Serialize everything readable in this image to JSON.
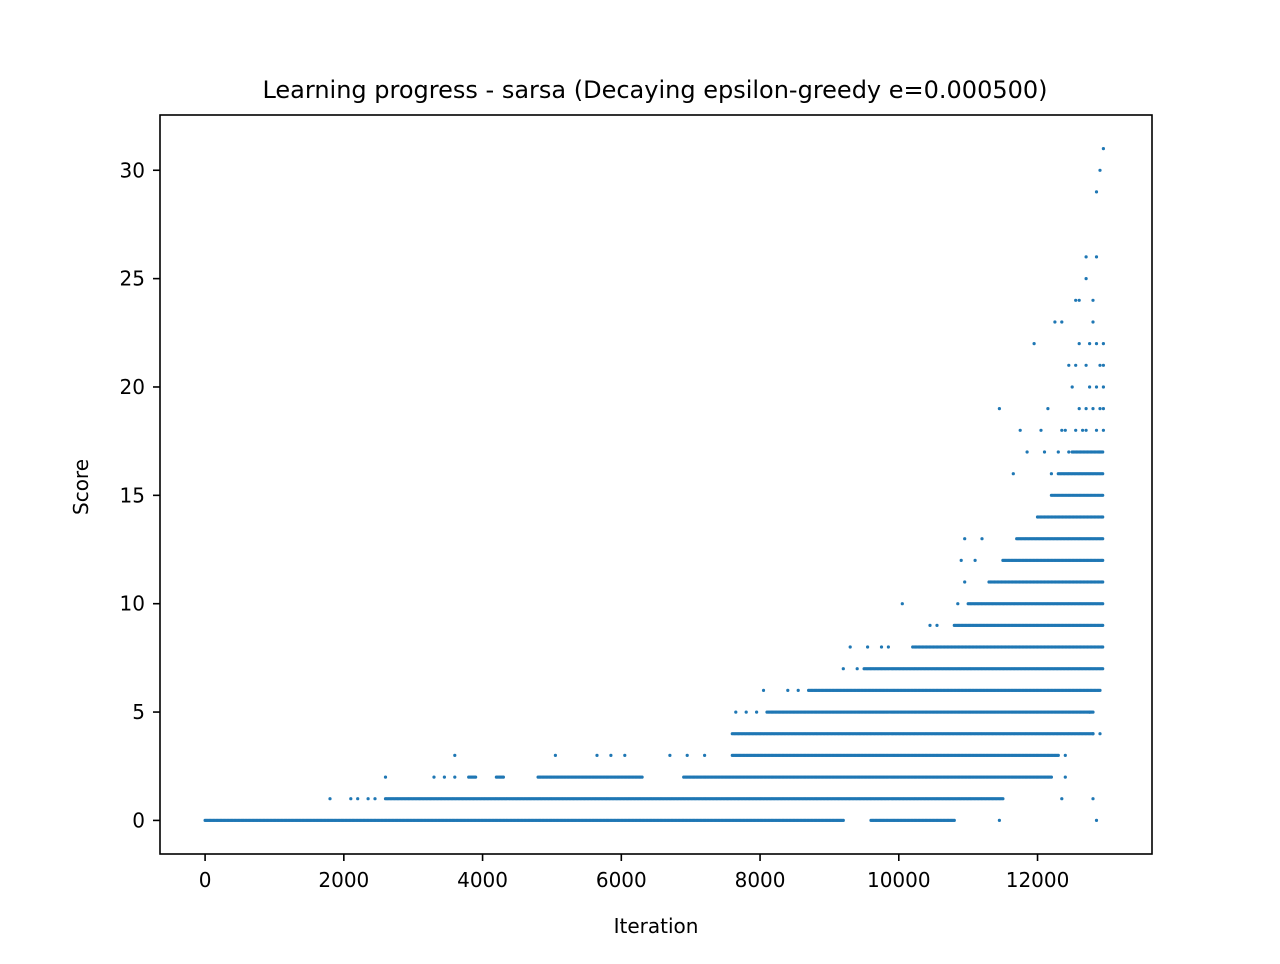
{
  "chart_data": {
    "type": "scatter",
    "title": "Learning progress - sarsa (Decaying epsilon-greedy e=0.000500)",
    "xlabel": "Iteration",
    "ylabel": "Score",
    "xlim": [
      -650,
      13650
    ],
    "ylim": [
      -1.55,
      32.55
    ],
    "x_ticks": [
      0,
      2000,
      4000,
      6000,
      8000,
      10000,
      12000
    ],
    "y_ticks": [
      0,
      5,
      10,
      15,
      20,
      25,
      30
    ],
    "grid": false,
    "legend": "none",
    "marker_color": "#1f77b4",
    "series": [
      {
        "note": "bands: y = score level, x_ranges = [start, end] of dense runs of points",
        "bands": [
          {
            "y": 0,
            "x_ranges": [
              [
                0,
                9200
              ],
              [
                9600,
                10800
              ]
            ]
          },
          {
            "y": 1,
            "x_ranges": [
              [
                2600,
                11500
              ]
            ]
          },
          {
            "y": 2,
            "x_ranges": [
              [
                3800,
                3900
              ],
              [
                4200,
                4300
              ],
              [
                4800,
                6300
              ],
              [
                6900,
                12200
              ]
            ]
          },
          {
            "y": 3,
            "x_ranges": [
              [
                7600,
                12300
              ]
            ]
          },
          {
            "y": 4,
            "x_ranges": [
              [
                7600,
                12800
              ]
            ]
          },
          {
            "y": 5,
            "x_ranges": [
              [
                8100,
                12800
              ]
            ]
          },
          {
            "y": 6,
            "x_ranges": [
              [
                8700,
                12900
              ]
            ]
          },
          {
            "y": 7,
            "x_ranges": [
              [
                9500,
                12950
              ]
            ]
          },
          {
            "y": 8,
            "x_ranges": [
              [
                10200,
                12950
              ]
            ]
          },
          {
            "y": 9,
            "x_ranges": [
              [
                10800,
                12950
              ]
            ]
          },
          {
            "y": 10,
            "x_ranges": [
              [
                11000,
                12950
              ]
            ]
          },
          {
            "y": 11,
            "x_ranges": [
              [
                11300,
                12950
              ]
            ]
          },
          {
            "y": 12,
            "x_ranges": [
              [
                11500,
                12950
              ]
            ]
          },
          {
            "y": 13,
            "x_ranges": [
              [
                11700,
                12950
              ]
            ]
          },
          {
            "y": 14,
            "x_ranges": [
              [
                12000,
                12950
              ]
            ]
          },
          {
            "y": 15,
            "x_ranges": [
              [
                12200,
                12950
              ]
            ]
          },
          {
            "y": 16,
            "x_ranges": [
              [
                12300,
                12950
              ]
            ]
          },
          {
            "y": 17,
            "x_ranges": [
              [
                12500,
                12950
              ]
            ]
          }
        ],
        "points": [
          [
            1800,
            1
          ],
          [
            2100,
            1
          ],
          [
            2200,
            1
          ],
          [
            2350,
            1
          ],
          [
            2450,
            1
          ],
          [
            2600,
            2
          ],
          [
            3300,
            2
          ],
          [
            3450,
            2
          ],
          [
            3600,
            2
          ],
          [
            3600,
            3
          ],
          [
            5050,
            3
          ],
          [
            5650,
            3
          ],
          [
            5850,
            3
          ],
          [
            6050,
            3
          ],
          [
            6700,
            3
          ],
          [
            6950,
            3
          ],
          [
            7200,
            3
          ],
          [
            7650,
            5
          ],
          [
            7800,
            5
          ],
          [
            7950,
            5
          ],
          [
            8050,
            6
          ],
          [
            8400,
            6
          ],
          [
            8550,
            6
          ],
          [
            9300,
            8
          ],
          [
            9550,
            8
          ],
          [
            9750,
            8
          ],
          [
            9850,
            8
          ],
          [
            9200,
            7
          ],
          [
            9400,
            7
          ],
          [
            10050,
            10
          ],
          [
            10450,
            9
          ],
          [
            10550,
            9
          ],
          [
            10850,
            10
          ],
          [
            10900,
            12
          ],
          [
            10950,
            11
          ],
          [
            10950,
            13
          ],
          [
            11100,
            12
          ],
          [
            11200,
            13
          ],
          [
            11450,
            19
          ],
          [
            11450,
            0
          ],
          [
            11650,
            16
          ],
          [
            11750,
            18
          ],
          [
            11850,
            17
          ],
          [
            11950,
            22
          ],
          [
            12050,
            18
          ],
          [
            12150,
            19
          ],
          [
            12250,
            23
          ],
          [
            12350,
            23
          ],
          [
            12400,
            18
          ],
          [
            12450,
            21
          ],
          [
            12550,
            24
          ],
          [
            12600,
            24
          ],
          [
            12700,
            25
          ],
          [
            12700,
            26
          ],
          [
            12800,
            23
          ],
          [
            12800,
            24
          ],
          [
            12850,
            26
          ],
          [
            12850,
            29
          ],
          [
            12900,
            30
          ],
          [
            12950,
            31
          ],
          [
            12850,
            0
          ],
          [
            12800,
            1
          ],
          [
            12350,
            1
          ],
          [
            12400,
            2
          ],
          [
            12400,
            3
          ],
          [
            12900,
            4
          ],
          [
            12750,
            5
          ],
          [
            12800,
            4
          ],
          [
            12650,
            18
          ],
          [
            12700,
            19
          ],
          [
            12750,
            20
          ],
          [
            12800,
            19
          ],
          [
            12850,
            20
          ],
          [
            12900,
            21
          ],
          [
            12950,
            22
          ],
          [
            12950,
            20
          ],
          [
            12950,
            21
          ],
          [
            12600,
            19
          ],
          [
            12500,
            20
          ],
          [
            12550,
            21
          ],
          [
            12600,
            22
          ],
          [
            12750,
            22
          ],
          [
            12850,
            22
          ],
          [
            12700,
            21
          ],
          [
            12450,
            17
          ],
          [
            12350,
            18
          ],
          [
            12550,
            18
          ],
          [
            12700,
            18
          ],
          [
            12850,
            18
          ],
          [
            12900,
            19
          ],
          [
            12950,
            19
          ],
          [
            12200,
            16
          ],
          [
            12100,
            17
          ],
          [
            12300,
            17
          ],
          [
            12900,
            17
          ],
          [
            12950,
            18
          ]
        ]
      }
    ]
  }
}
